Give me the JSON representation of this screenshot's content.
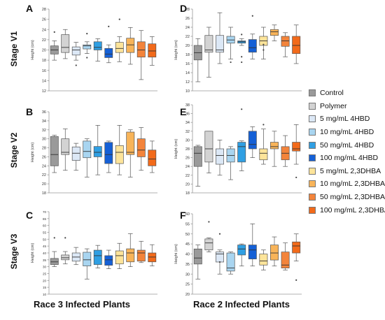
{
  "colors": [
    "#9a9a9a",
    "#d3d3d3",
    "#dce8f6",
    "#a9d5f0",
    "#2f9fe3",
    "#1560d6",
    "#fde49a",
    "#f8b459",
    "#f3843b",
    "#f26a1a"
  ],
  "legend": {
    "items": [
      "Control",
      "Polymer",
      "5 mg/mL 4HBD",
      "10 mg/mL 4HBD",
      "50 mg/mL 4HBD",
      "100 mg/mL 4HBD",
      "5 mg/mL 2,3DHBA",
      "10 mg/mL 2,3DHBA",
      "50 mg/mL 2,3DHBA",
      "100 mg/mL 2,3DHBA"
    ]
  },
  "stages": [
    "Stage V1",
    "Stage V2",
    "Stage V3"
  ],
  "footer": {
    "left": "Race 3 Infected Plants",
    "right": "Race 2 Infected Plants"
  },
  "chart_data": [
    {
      "panel": "A",
      "type": "box",
      "ylabel": "Height (cm)",
      "ylim": [
        12,
        28
      ],
      "yticks": [
        "12",
        "14",
        "16",
        "18",
        "20",
        "22",
        "24",
        "26",
        "28"
      ],
      "series": [
        {
          "min": 18.0,
          "q1": 19.2,
          "median": 20.0,
          "q3": 20.8,
          "max": 21.8,
          "outliers": [
            23.5
          ]
        },
        {
          "min": 18.3,
          "q1": 19.5,
          "median": 20.5,
          "q3": 23.0,
          "max": 24.0,
          "outliers": []
        },
        {
          "min": 18.0,
          "q1": 19.0,
          "median": 20.0,
          "q3": 20.6,
          "max": 21.5,
          "outliers": [
            17.0
          ]
        },
        {
          "min": 19.3,
          "q1": 20.2,
          "median": 20.8,
          "q3": 21.0,
          "max": 21.6,
          "outliers": [
            23.2,
            18.5
          ]
        },
        {
          "min": 17.8,
          "q1": 20.0,
          "median": 20.5,
          "q3": 21.6,
          "max": 22.2,
          "outliers": []
        },
        {
          "min": 17.5,
          "q1": 18.5,
          "median": 19.2,
          "q3": 20.3,
          "max": 21.0,
          "outliers": [
            24.6
          ]
        },
        {
          "min": 17.7,
          "q1": 19.5,
          "median": 20.3,
          "q3": 21.5,
          "max": 22.6,
          "outliers": [
            26.0
          ]
        },
        {
          "min": 17.2,
          "q1": 19.5,
          "median": 21.0,
          "q3": 22.3,
          "max": 24.4,
          "outliers": []
        },
        {
          "min": 14.2,
          "q1": 18.6,
          "median": 20.0,
          "q3": 21.6,
          "max": 23.8,
          "outliers": []
        },
        {
          "min": 17.0,
          "q1": 18.6,
          "median": 19.8,
          "q3": 21.2,
          "max": 22.6,
          "outliers": []
        }
      ]
    },
    {
      "panel": "D",
      "type": "box",
      "ylabel": "Height (cm)",
      "ylim": [
        10,
        28
      ],
      "yticks": [
        "10",
        "12",
        "14",
        "16",
        "18",
        "20",
        "22",
        "24",
        "26",
        "28"
      ],
      "series": [
        {
          "min": 12.0,
          "q1": 16.8,
          "median": 18.4,
          "q3": 20.0,
          "max": 21.5,
          "outliers": []
        },
        {
          "min": 13.0,
          "q1": 18.5,
          "median": 19.0,
          "q3": 22.2,
          "max": 24.0,
          "outliers": []
        },
        {
          "min": 16.0,
          "q1": 18.5,
          "median": 19.0,
          "q3": 22.2,
          "max": 27.2,
          "outliers": []
        },
        {
          "min": 17.0,
          "q1": 20.5,
          "median": 21.2,
          "q3": 22.0,
          "max": 24.0,
          "outliers": [
            16.3
          ]
        },
        {
          "min": 20.0,
          "q1": 20.5,
          "median": 20.8,
          "q3": 21.0,
          "max": 21.5,
          "outliers": [
            22.4,
            17.5,
            16.3
          ]
        },
        {
          "min": 17.0,
          "q1": 18.5,
          "median": 19.5,
          "q3": 21.3,
          "max": 22.5,
          "outliers": [
            26.5
          ]
        },
        {
          "min": 17.0,
          "q1": 20.0,
          "median": 21.0,
          "q3": 22.0,
          "max": 24.0,
          "outliers": [
            19.0,
            20.2
          ]
        },
        {
          "min": 21.0,
          "q1": 22.2,
          "median": 23.0,
          "q3": 23.5,
          "max": 24.5,
          "outliers": []
        },
        {
          "min": 17.5,
          "q1": 19.8,
          "median": 21.0,
          "q3": 22.0,
          "max": 22.8,
          "outliers": []
        },
        {
          "min": 16.0,
          "q1": 18.2,
          "median": 20.0,
          "q3": 22.0,
          "max": 24.5,
          "outliers": []
        }
      ]
    },
    {
      "panel": "B",
      "type": "box",
      "ylabel": "Height (cm)",
      "ylim": [
        18,
        36
      ],
      "yticks": [
        "18",
        "20",
        "22",
        "24",
        "26",
        "28",
        "30",
        "32",
        "34",
        "36"
      ],
      "series": [
        {
          "min": 22.5,
          "q1": 24.0,
          "median": 26.5,
          "q3": 30.5,
          "max": 30.8,
          "outliers": []
        },
        {
          "min": 23.0,
          "q1": 26.5,
          "median": 27.0,
          "q3": 30.0,
          "max": 32.2,
          "outliers": []
        },
        {
          "min": 23.0,
          "q1": 25.2,
          "median": 26.8,
          "q3": 28.2,
          "max": 29.0,
          "outliers": []
        },
        {
          "min": 21.5,
          "q1": 25.8,
          "median": 27.2,
          "q3": 29.5,
          "max": 30.0,
          "outliers": []
        },
        {
          "min": 22.0,
          "q1": 26.0,
          "median": 27.0,
          "q3": 28.3,
          "max": 33.0,
          "outliers": []
        },
        {
          "min": 22.5,
          "q1": 24.5,
          "median": 26.5,
          "q3": 29.2,
          "max": 29.5,
          "outliers": []
        },
        {
          "min": 22.0,
          "q1": 24.5,
          "median": 27.0,
          "q3": 28.5,
          "max": 33.0,
          "outliers": []
        },
        {
          "min": 21.5,
          "q1": 26.5,
          "median": 27.0,
          "q3": 31.5,
          "max": 32.0,
          "outliers": []
        },
        {
          "min": 23.0,
          "q1": 26.0,
          "median": 27.5,
          "q3": 30.0,
          "max": 32.5,
          "outliers": []
        },
        {
          "min": 22.5,
          "q1": 24.0,
          "median": 25.5,
          "q3": 27.5,
          "max": 29.5,
          "outliers": []
        }
      ]
    },
    {
      "panel": "E",
      "type": "box",
      "ylabel": "Height (cm)",
      "ylim": [
        18,
        38
      ],
      "yticks": [
        "18",
        "20",
        "22",
        "24",
        "26",
        "28",
        "30",
        "32",
        "34",
        "36",
        "38"
      ],
      "series": [
        {
          "min": 19.5,
          "q1": 24.0,
          "median": 27.0,
          "q3": 28.5,
          "max": 28.8,
          "outliers": []
        },
        {
          "min": 22.5,
          "q1": 25.0,
          "median": 28.0,
          "q3": 32.0,
          "max": 32.0,
          "outliers": []
        },
        {
          "min": 22.0,
          "q1": 24.5,
          "median": 26.5,
          "q3": 28.0,
          "max": 30.0,
          "outliers": []
        },
        {
          "min": 21.0,
          "q1": 25.0,
          "median": 26.5,
          "q3": 28.0,
          "max": 28.5,
          "outliers": []
        },
        {
          "min": 23.0,
          "q1": 25.0,
          "median": 28.5,
          "q3": 29.5,
          "max": 29.8,
          "outliers": [
            37.0
          ]
        },
        {
          "min": 26.0,
          "q1": 28.0,
          "median": 29.0,
          "q3": 32.0,
          "max": 33.0,
          "outliers": []
        },
        {
          "min": 24.5,
          "q1": 25.5,
          "median": 27.0,
          "q3": 28.0,
          "max": 32.5,
          "outliers": [
            33.5
          ]
        },
        {
          "min": 24.0,
          "q1": 28.0,
          "median": 28.5,
          "q3": 29.5,
          "max": 32.0,
          "outliers": []
        },
        {
          "min": 24.0,
          "q1": 25.5,
          "median": 27.0,
          "q3": 28.5,
          "max": 31.0,
          "outliers": []
        },
        {
          "min": 24.5,
          "q1": 27.5,
          "median": 28.0,
          "q3": 29.5,
          "max": 33.5,
          "outliers": [
            21.5
          ]
        }
      ]
    },
    {
      "panel": "C",
      "type": "box",
      "ylabel": "Height (cm)",
      "ylim": [
        10,
        70
      ],
      "yticks": [
        "10",
        "15",
        "20",
        "25",
        "30",
        "35",
        "40",
        "45",
        "50",
        "55",
        "60",
        "65",
        "70"
      ],
      "series": [
        {
          "min": 30.0,
          "q1": 31.5,
          "median": 33.5,
          "q3": 36.0,
          "max": 41.0,
          "outliers": [
            51.0
          ]
        },
        {
          "min": 32.0,
          "q1": 35.0,
          "median": 36.5,
          "q3": 38.5,
          "max": 41.0,
          "outliers": [
            51.0
          ]
        },
        {
          "min": 31.5,
          "q1": 34.0,
          "median": 37.0,
          "q3": 40.0,
          "max": 44.0,
          "outliers": []
        },
        {
          "min": 21.0,
          "q1": 30.5,
          "median": 35.0,
          "q3": 40.5,
          "max": 43.0,
          "outliers": []
        },
        {
          "min": 29.0,
          "q1": 31.5,
          "median": 38.0,
          "q3": 42.0,
          "max": 45.5,
          "outliers": []
        },
        {
          "min": 28.5,
          "q1": 31.0,
          "median": 35.0,
          "q3": 38.0,
          "max": 42.0,
          "outliers": []
        },
        {
          "min": 28.5,
          "q1": 32.0,
          "median": 38.0,
          "q3": 41.5,
          "max": 47.0,
          "outliers": []
        },
        {
          "min": 30.0,
          "q1": 33.5,
          "median": 40.0,
          "q3": 43.0,
          "max": 54.0,
          "outliers": []
        },
        {
          "min": 33.0,
          "q1": 34.0,
          "median": 40.0,
          "q3": 42.0,
          "max": 48.5,
          "outliers": []
        },
        {
          "min": 30.5,
          "q1": 33.5,
          "median": 37.0,
          "q3": 40.0,
          "max": 46.0,
          "outliers": []
        }
      ]
    },
    {
      "panel": "F",
      "type": "box",
      "ylabel": "Height (cm)",
      "ylim": [
        20,
        60
      ],
      "yticks": [
        "20",
        "25",
        "30",
        "35",
        "40",
        "45",
        "50",
        "55",
        "60"
      ],
      "series": [
        {
          "min": 27.5,
          "q1": 35.0,
          "median": 38.0,
          "q3": 42.5,
          "max": 44.5,
          "outliers": []
        },
        {
          "min": 41.0,
          "q1": 42.0,
          "median": 45.5,
          "q3": 47.5,
          "max": 48.0,
          "outliers": [
            56.0
          ]
        },
        {
          "min": 30.0,
          "q1": 36.0,
          "median": 40.0,
          "q3": 41.0,
          "max": 42.0,
          "outliers": [
            50.0,
            36.0
          ]
        },
        {
          "min": 30.0,
          "q1": 31.5,
          "median": 33.0,
          "q3": 40.5,
          "max": 41.0,
          "outliers": []
        },
        {
          "min": 34.0,
          "q1": 39.5,
          "median": 42.5,
          "q3": 44.5,
          "max": 45.0,
          "outliers": []
        },
        {
          "min": 34.0,
          "q1": 37.5,
          "median": 42.0,
          "q3": 44.5,
          "max": 55.0,
          "outliers": []
        },
        {
          "min": 32.0,
          "q1": 34.5,
          "median": 36.5,
          "q3": 40.0,
          "max": 42.0,
          "outliers": []
        },
        {
          "min": 34.0,
          "q1": 37.0,
          "median": 40.5,
          "q3": 44.5,
          "max": 48.5,
          "outliers": []
        },
        {
          "min": 32.0,
          "q1": 33.0,
          "median": 34.5,
          "q3": 41.0,
          "max": 45.5,
          "outliers": []
        },
        {
          "min": 36.5,
          "q1": 40.5,
          "median": 44.0,
          "q3": 46.0,
          "max": 50.0,
          "outliers": [
            27.0
          ]
        }
      ]
    }
  ]
}
